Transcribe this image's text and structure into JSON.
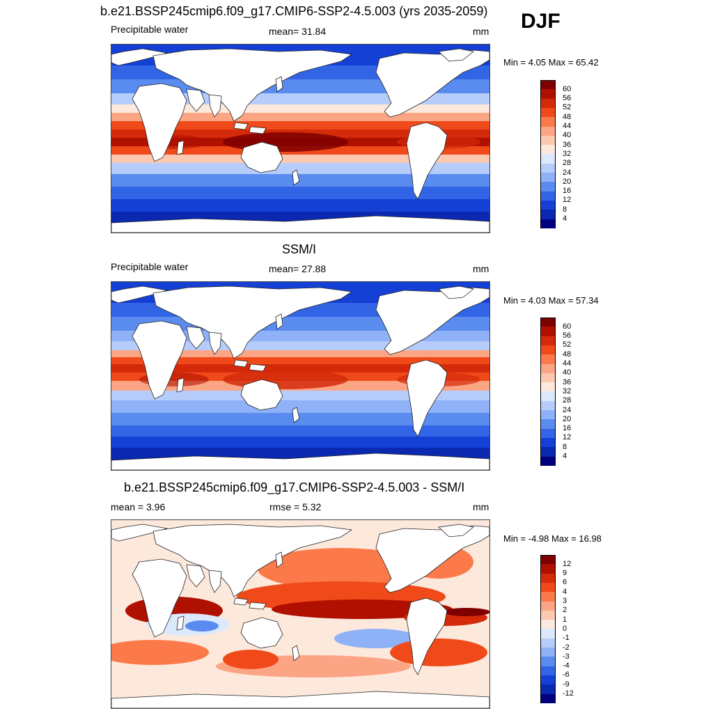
{
  "season": "DJF",
  "panels": [
    {
      "title": "b.e21.BSSP245cmip6.f09_g17.CMIP6-SSP2-4.5.003 (yrs 2035-2059)",
      "left_label": "Precipitable water",
      "center_label": "mean=  31.84",
      "units": "mm",
      "minmax": "Min =   4.05 Max =  65.42",
      "scale": "abs"
    },
    {
      "title": "SSM/I",
      "left_label": "Precipitable water",
      "center_label": "mean=  27.88",
      "units": "mm",
      "minmax": "Min =   4.03 Max =  57.34",
      "scale": "abs"
    },
    {
      "title": "b.e21.BSSP245cmip6.f09_g17.CMIP6-SSP2-4.5.003 - SSM/I",
      "left_label": "mean =   3.96",
      "center_label": "rmse =   5.32",
      "units": "mm",
      "minmax": "Min =  -4.98 Max =  16.98",
      "scale": "diff"
    }
  ],
  "colorbars": {
    "abs": {
      "ticks": [
        "60",
        "56",
        "52",
        "48",
        "44",
        "40",
        "36",
        "32",
        "28",
        "24",
        "20",
        "16",
        "12",
        "8",
        "4"
      ],
      "colors": [
        "#7f0000",
        "#b01000",
        "#d42a0a",
        "#f04a1a",
        "#fc7a4a",
        "#fca585",
        "#fcc8b0",
        "#fde8dc",
        "#dce8fc",
        "#b6cdfb",
        "#8eb1f8",
        "#5a8cf0",
        "#3264e6",
        "#1440d6",
        "#0a28b0",
        "#00007f"
      ]
    },
    "diff": {
      "ticks": [
        "12",
        "9",
        "6",
        "4",
        "3",
        "2",
        "1",
        "0",
        "-1",
        "-2",
        "-3",
        "-4",
        "-6",
        "-9",
        "-12"
      ],
      "colors": [
        "#7f0000",
        "#b01000",
        "#d42a0a",
        "#f04a1a",
        "#fc7a4a",
        "#fca585",
        "#fcc8b0",
        "#fde8dc",
        "#dce8fc",
        "#b6cdfb",
        "#8eb1f8",
        "#5a8cf0",
        "#3264e6",
        "#1440d6",
        "#0a28b0",
        "#00007f"
      ]
    }
  }
}
